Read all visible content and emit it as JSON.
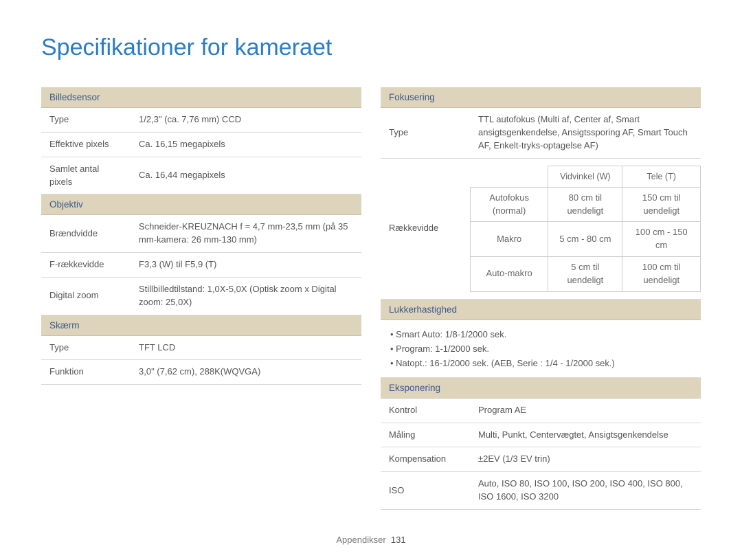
{
  "title": "Specifikationer for kameraet",
  "footer": {
    "section": "Appendikser",
    "page": "131"
  },
  "colors": {
    "title": "#2a7cc4",
    "header_bg": "#ddd4bb",
    "header_fg": "#3d5a8a",
    "border": "#d9d9d9",
    "nested_border": "#cccccc",
    "text": "#4a4a4a"
  },
  "left": {
    "billedsensor": {
      "header": "Billedsensor",
      "rows": [
        {
          "label": "Type",
          "value": "1/2,3\" (ca. 7,76 mm) CCD"
        },
        {
          "label": "Effektive pixels",
          "value": "Ca. 16,15 megapixels"
        },
        {
          "label": "Samlet antal pixels",
          "value": "Ca. 16,44 megapixels"
        }
      ]
    },
    "objektiv": {
      "header": "Objektiv",
      "rows": [
        {
          "label": "Brændvidde",
          "value": "Schneider-KREUZNACH f = 4,7 mm-23,5 mm (på 35 mm-kamera: 26 mm-130 mm)"
        },
        {
          "label": "F-rækkevidde",
          "value": "F3,3 (W) til F5,9 (T)"
        },
        {
          "label": "Digital zoom",
          "value": "Stillbilledtilstand: 1,0X-5,0X (Optisk zoom x Digital zoom: 25,0X)"
        }
      ]
    },
    "skaerm": {
      "header": "Skærm",
      "rows": [
        {
          "label": "Type",
          "value": "TFT LCD"
        },
        {
          "label": "Funktion",
          "value": "3,0\" (7,62 cm), 288K(WQVGA)"
        }
      ]
    }
  },
  "right": {
    "fokusering": {
      "header": "Fokusering",
      "type_row": {
        "label": "Type",
        "value": "TTL autofokus (Multi af, Center af, Smart ansigtsgenkendelse, Ansigtssporing AF, Smart Touch AF, Enkelt-tryks-optagelse AF)"
      },
      "range_label": "Rækkevidde",
      "nested": {
        "col_headers": [
          "",
          "Vidvinkel (W)",
          "Tele (T)"
        ],
        "rows": [
          {
            "label": "Autofokus (normal)",
            "w": "80 cm til uendeligt",
            "t": "150 cm til uendeligt"
          },
          {
            "label": "Makro",
            "w": "5 cm - 80 cm",
            "t": "100 cm - 150 cm"
          },
          {
            "label": "Auto-makro",
            "w": "5 cm til uendeligt",
            "t": "100 cm til uendeligt"
          }
        ]
      }
    },
    "lukker": {
      "header": "Lukkerhastighed",
      "bullets": [
        "Smart Auto: 1/8-1/2000 sek.",
        "Program: 1-1/2000 sek.",
        "Natopt.: 16-1/2000 sek. (AEB, Serie : 1/4 - 1/2000 sek.)"
      ]
    },
    "eksponering": {
      "header": "Eksponering",
      "rows": [
        {
          "label": "Kontrol",
          "value": "Program AE"
        },
        {
          "label": "Måling",
          "value": "Multi, Punkt, Centervægtet, Ansigtsgenkendelse"
        },
        {
          "label": "Kompensation",
          "value": "±2EV (1/3 EV trin)"
        },
        {
          "label": "ISO",
          "value": "Auto, ISO 80, ISO 100, ISO 200, ISO 400, ISO 800, ISO 1600, ISO 3200"
        }
      ]
    }
  }
}
